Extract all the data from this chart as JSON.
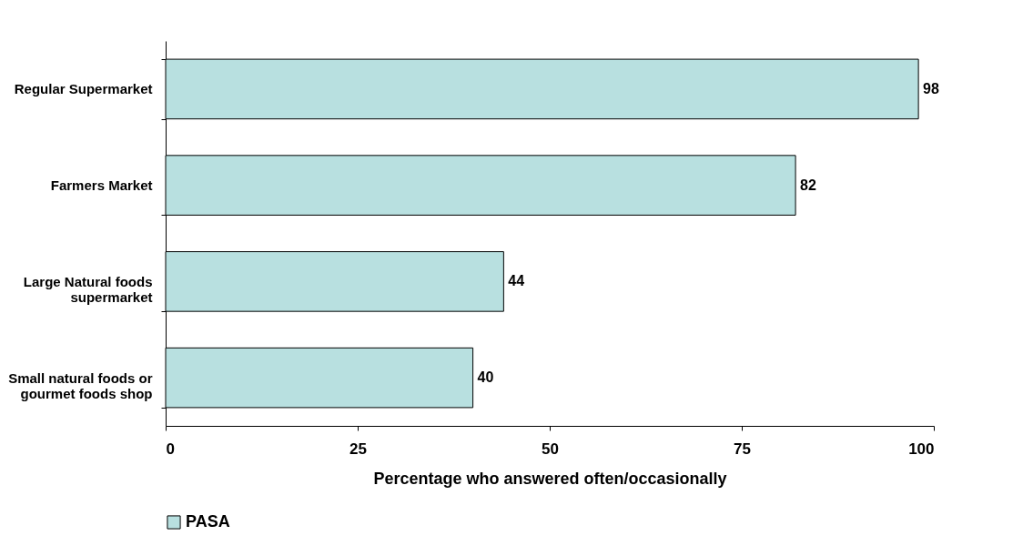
{
  "chart_data": {
    "type": "bar",
    "orientation": "horizontal",
    "xlabel": "Percentage who answered often/occasionally",
    "categories": [
      "Regular Supermarket",
      "Farmers Market",
      "Large Natural foods supermarket",
      "Small natural foods or gourmet foods shop"
    ],
    "series": [
      {
        "name": "PASA",
        "color": "#b8e0e0",
        "values": [
          98,
          82,
          44,
          40
        ]
      }
    ],
    "xlim": [
      0,
      100
    ],
    "xticks": [
      0,
      25,
      50,
      75,
      100
    ],
    "data_labels": true,
    "grid": false,
    "legend": "bottom"
  }
}
